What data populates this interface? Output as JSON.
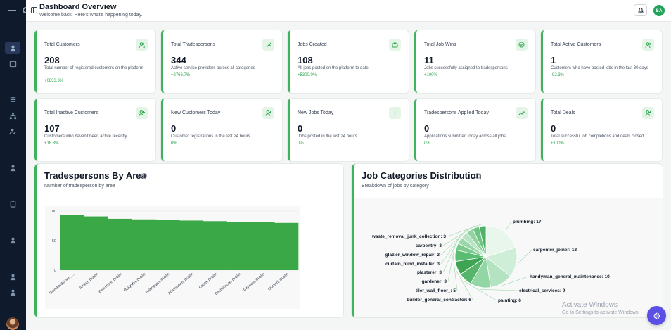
{
  "header": {
    "title": "Dashboard Overview",
    "subtitle": "Welcome back! Here's what's happening today.",
    "avatar_initials": "SA"
  },
  "sidebar": {
    "icons": [
      "user-icon",
      "calendar-icon",
      "list-icon",
      "network-icon",
      "user-edit-icon",
      "user-icon",
      "clipboard-icon",
      "user-icon",
      "user-icon",
      "user-icon"
    ]
  },
  "cards": [
    {
      "title": "Total Customers",
      "value": "208",
      "desc": "Total number of registered customers on the platform",
      "change": "+6833.3%",
      "icon": "users-icon"
    },
    {
      "title": "Total Tradespersons",
      "value": "344",
      "desc": "Active service providers across all categories",
      "change": "+2766.7%",
      "icon": "wrench-icon"
    },
    {
      "title": "Jobs Created",
      "value": "108",
      "desc": "All jobs posted on the platform to date",
      "change": "+5300.0%",
      "icon": "briefcase-icon"
    },
    {
      "title": "Total Job Wins",
      "value": "11",
      "desc": "Jobs successfully assigned to tradespersons",
      "change": "+100%",
      "icon": "check-circle-icon"
    },
    {
      "title": "Total Active Customers",
      "value": "1",
      "desc": "Customers who have posted jobs in the last 30 days",
      "change": "-92.3%",
      "icon": "users-icon"
    },
    {
      "title": "Total Inactive Customers",
      "value": "107",
      "desc": "Customers who haven't been active recently",
      "change": "+16.3%",
      "icon": "user-plus-icon"
    },
    {
      "title": "New Customers Today",
      "value": "0",
      "desc": "Customer registrations in the last 24 hours",
      "change": "0%",
      "icon": "user-plus-icon"
    },
    {
      "title": "New Jobs Today",
      "value": "0",
      "desc": "Jobs posted in the last 24 hours",
      "change": "0%",
      "icon": "plus-icon"
    },
    {
      "title": "Tradespersons Applied Today",
      "value": "0",
      "desc": "Applications submitted today across all jobs",
      "change": "0%",
      "icon": "trending-up-icon"
    },
    {
      "title": "Total Deals",
      "value": "0",
      "desc": "Total successful job completions and deals closed",
      "change": "+100%",
      "icon": "user-plus-icon"
    }
  ],
  "bar_panel": {
    "title": "Tradespersons By Area",
    "subtitle": "Number of tradesperson by area"
  },
  "pie_panel": {
    "title": "Job Categories Distribution",
    "subtitle": "Breakdown of jobs by category"
  },
  "watermark": {
    "line1": "Activate Windows",
    "line2": "Go to Settings to activate Windows."
  },
  "colors": {
    "accent": "#3fb25e",
    "bar": "#3aa847",
    "sidebar": "#0f1b2d",
    "fab": "#5b50e6"
  },
  "chart_data": [
    {
      "type": "bar",
      "title": "Tradespersons By Area",
      "subtitle": "Number of tradesperson by area",
      "categories": [
        "Blanchardstown, ...",
        "Artane, Dublin",
        "Beaumont, Dublin",
        "Balgriffin, Dublin",
        "Balbriggan, Dublin",
        "Adamstown, Dublin",
        "Cabra, Dublin",
        "Castleknock, Dublin",
        "Citywest, Dublin",
        "Clontarf, Dublin"
      ],
      "values": [
        94,
        91,
        87,
        86,
        85,
        84,
        83,
        82,
        81,
        80
      ],
      "ylim": [
        0,
        100
      ],
      "yticks": [
        0,
        50,
        100
      ],
      "grid": true
    },
    {
      "type": "pie",
      "title": "Job Categories Distribution",
      "subtitle": "Breakdown of jobs by category",
      "slices": [
        {
          "label": "plumbing",
          "value": 17
        },
        {
          "label": "carpenter_joiner",
          "value": 13
        },
        {
          "label": "handyman_general_maintenance",
          "value": 10
        },
        {
          "label": "electrical_services",
          "value": 9
        },
        {
          "label": "painting",
          "value": 6
        },
        {
          "label": "builder_general_contractor",
          "value": 6
        },
        {
          "label": "tiler_wall_floor_",
          "value": 5
        },
        {
          "label": "gardener",
          "value": 3
        },
        {
          "label": "plasterer",
          "value": 3
        },
        {
          "label": "curtain_blind_installer",
          "value": 3
        },
        {
          "label": "glazier_window_repair",
          "value": 3
        },
        {
          "label": "carpentry",
          "value": 3
        },
        {
          "label": "waste_removal_junk_collection",
          "value": 3
        }
      ]
    }
  ]
}
